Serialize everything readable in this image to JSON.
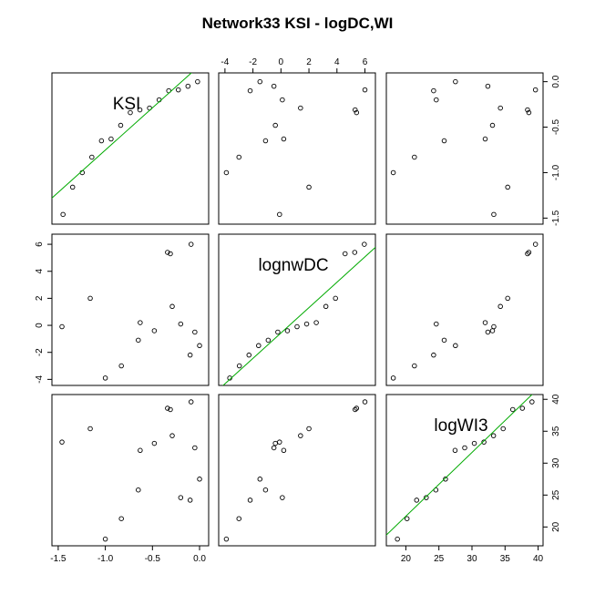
{
  "chart_data": {
    "type": "scatter",
    "subtype": "scatterplot-matrix",
    "title": "Network33 KSI - logDC,WI",
    "variables": [
      "KSI",
      "lognwDC",
      "logWI3"
    ],
    "axis_ticks": {
      "KSI": {
        "labels": [
          "-1.5",
          "-1.0",
          "-0.5",
          "0.0"
        ],
        "values": [
          -1.5,
          -1.0,
          -0.5,
          0.0
        ]
      },
      "lognwDC": {
        "labels": [
          "-4",
          "-2",
          "0",
          "2",
          "4",
          "6"
        ],
        "values": [
          -4,
          -2,
          0,
          2,
          4,
          6
        ]
      },
      "logWI3": {
        "labels": [
          "20",
          "25",
          "30",
          "35",
          "40"
        ],
        "values": [
          20,
          25,
          30,
          35,
          40
        ]
      }
    },
    "axis_ranges": {
      "KSI": [
        -1.5,
        0.03
      ],
      "lognwDC": [
        -4.0,
        6.3
      ],
      "logWI3": [
        18.0,
        39.8
      ]
    },
    "points": [
      {
        "KSI": 0.0,
        "lognwDC": -1.5,
        "logWI3": 27.5
      },
      {
        "KSI": -0.05,
        "lognwDC": -0.5,
        "logWI3": 32.4
      },
      {
        "KSI": -0.09,
        "lognwDC": 6.0,
        "logWI3": 39.6
      },
      {
        "KSI": -0.1,
        "lognwDC": -2.2,
        "logWI3": 24.2
      },
      {
        "KSI": -0.2,
        "lognwDC": 0.1,
        "logWI3": 24.6
      },
      {
        "KSI": -0.29,
        "lognwDC": 1.4,
        "logWI3": 34.3
      },
      {
        "KSI": -0.31,
        "lognwDC": 5.3,
        "logWI3": 38.4
      },
      {
        "KSI": -0.34,
        "lognwDC": 5.4,
        "logWI3": 38.6
      },
      {
        "KSI": -0.48,
        "lognwDC": -0.4,
        "logWI3": 33.1
      },
      {
        "KSI": -0.63,
        "lognwDC": 0.2,
        "logWI3": 32.0
      },
      {
        "KSI": -0.65,
        "lognwDC": -1.1,
        "logWI3": 25.8
      },
      {
        "KSI": -0.83,
        "lognwDC": -3.0,
        "logWI3": 21.3
      },
      {
        "KSI": -1.0,
        "lognwDC": -3.9,
        "logWI3": 18.1
      },
      {
        "KSI": -1.16,
        "lognwDC": 2.0,
        "logWI3": 35.4
      },
      {
        "KSI": -1.46,
        "lognwDC": -0.1,
        "logWI3": 33.3
      }
    ],
    "diagonal_fit_lines": true,
    "line_color": "#00aa00",
    "point_color": "#000000",
    "grid": false,
    "legend": "none"
  }
}
